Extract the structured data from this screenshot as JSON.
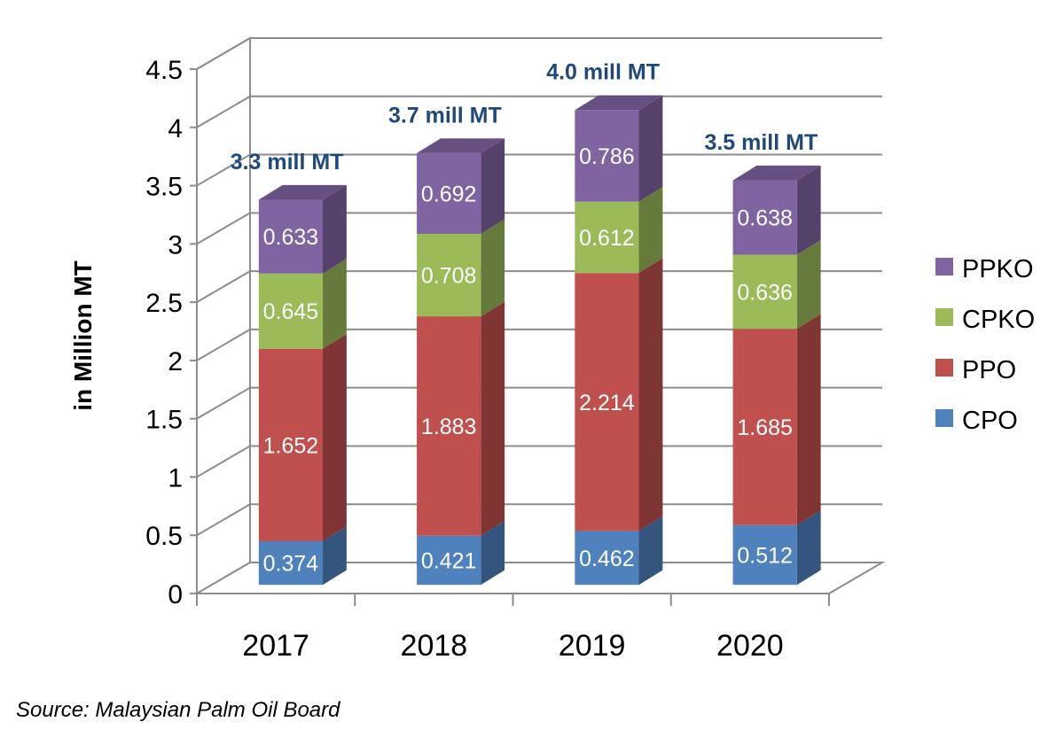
{
  "chart_data": {
    "type": "bar",
    "stacked": true,
    "three_d": true,
    "categories": [
      "2017",
      "2018",
      "2019",
      "2020"
    ],
    "series": [
      {
        "name": "CPO",
        "color": "#4F81BD",
        "values": [
          0.374,
          0.421,
          0.462,
          0.512
        ],
        "labels": [
          "0.374",
          "0.421",
          "0.462",
          "0.512"
        ]
      },
      {
        "name": "PPO",
        "color": "#C0504D",
        "values": [
          1.652,
          1.883,
          2.214,
          1.685
        ],
        "labels": [
          "1.652",
          "1.883",
          "2.214",
          "1.685"
        ]
      },
      {
        "name": "CPKO",
        "color": "#9BBB59",
        "values": [
          0.645,
          0.708,
          0.612,
          0.636
        ],
        "labels": [
          "0.645",
          "0.708",
          "0.612",
          "0.636"
        ]
      },
      {
        "name": "PPKO",
        "color": "#8064A2",
        "values": [
          0.633,
          0.692,
          0.786,
          0.638
        ],
        "labels": [
          "0.633",
          "0.692",
          "0.786",
          "0.638"
        ]
      }
    ],
    "totals_labels": [
      "3.3 mill MT",
      "3.7 mill MT",
      "4.0 mill MT",
      "3.5 mill MT"
    ],
    "totals_color": "#1F497D",
    "ylabel": "in Million MT",
    "ylim": [
      0,
      4.5
    ],
    "yticks": [
      "0",
      "0.5",
      "1",
      "1.5",
      "2",
      "2.5",
      "3",
      "3.5",
      "4",
      "4.5"
    ],
    "grid": true,
    "legend_position": "right",
    "legend_order": [
      "PPKO",
      "CPKO",
      "PPO",
      "CPO"
    ]
  },
  "source_text": "Source: Malaysian Palm Oil Board"
}
